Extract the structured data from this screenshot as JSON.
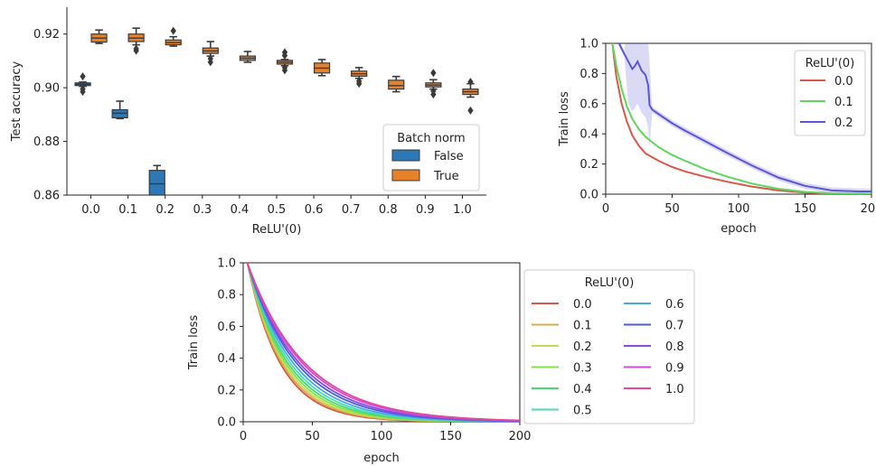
{
  "chart_data": [
    {
      "type": "box",
      "xlabel": "ReLU'(0)",
      "ylabel": "Test accuracy",
      "ylim": [
        0.86,
        0.93
      ],
      "yticks": [
        "0.86",
        "0.88",
        "0.90",
        "0.92"
      ],
      "categories": [
        "0.0",
        "0.1",
        "0.2",
        "0.3",
        "0.4",
        "0.5",
        "0.6",
        "0.7",
        "0.8",
        "0.9",
        "1.0"
      ],
      "legend": {
        "title": "Batch norm",
        "placement": "lower-right",
        "entries": [
          "False",
          "True"
        ]
      },
      "colors": {
        "False": "#2e78b5",
        "True": "#e8822a",
        "median": "#3a3a3a"
      },
      "series": [
        {
          "name": "False",
          "boxes": [
            {
              "category": "0.0",
              "whislo": 0.9005,
              "q1": 0.9008,
              "med": 0.9013,
              "q3": 0.9018,
              "whishi": 0.9021,
              "outliers": [
                0.9042,
                0.8985,
                0.8995
              ]
            },
            {
              "category": "0.1",
              "whislo": 0.8885,
              "q1": 0.8888,
              "med": 0.8905,
              "q3": 0.8918,
              "whishi": 0.895,
              "outliers": []
            },
            {
              "category": "0.2",
              "whislo": 0.86,
              "q1": 0.86,
              "med": 0.8642,
              "q3": 0.8692,
              "whishi": 0.871,
              "outliers": []
            }
          ]
        },
        {
          "name": "True",
          "boxes": [
            {
              "category": "0.0",
              "whislo": 0.9165,
              "q1": 0.917,
              "med": 0.9185,
              "q3": 0.92,
              "whishi": 0.9215,
              "outliers": []
            },
            {
              "category": "0.1",
              "whislo": 0.916,
              "q1": 0.9172,
              "med": 0.9185,
              "q3": 0.92,
              "whishi": 0.9222,
              "outliers": [
                0.9138,
                0.9145
              ]
            },
            {
              "category": "0.2",
              "whislo": 0.9155,
              "q1": 0.916,
              "med": 0.9168,
              "q3": 0.9178,
              "whishi": 0.919,
              "outliers": [
                0.9212
              ]
            },
            {
              "category": "0.3",
              "whislo": 0.9118,
              "q1": 0.9128,
              "med": 0.9137,
              "q3": 0.9148,
              "whishi": 0.9172,
              "outliers": [
                0.9095,
                0.9108
              ]
            },
            {
              "category": "0.4",
              "whislo": 0.9095,
              "q1": 0.9102,
              "med": 0.911,
              "q3": 0.9118,
              "whishi": 0.9135,
              "outliers": []
            },
            {
              "category": "0.5",
              "whislo": 0.9082,
              "q1": 0.9088,
              "med": 0.9095,
              "q3": 0.9102,
              "whishi": 0.9105,
              "outliers": [
                0.9132,
                0.912,
                0.9065,
                0.9075
              ]
            },
            {
              "category": "0.6",
              "whislo": 0.9045,
              "q1": 0.9055,
              "med": 0.9073,
              "q3": 0.9092,
              "whishi": 0.9105,
              "outliers": []
            },
            {
              "category": "0.7",
              "whislo": 0.9035,
              "q1": 0.9043,
              "med": 0.9052,
              "q3": 0.9062,
              "whishi": 0.9075,
              "outliers": [
                0.9015,
                0.9025
              ]
            },
            {
              "category": "0.8",
              "whislo": 0.8985,
              "q1": 0.8995,
              "med": 0.9008,
              "q3": 0.9028,
              "whishi": 0.9042,
              "outliers": []
            },
            {
              "category": "0.9",
              "whislo": 0.8995,
              "q1": 0.9003,
              "med": 0.901,
              "q3": 0.9018,
              "whishi": 0.903,
              "outliers": [
                0.9055,
                0.8975,
                0.8988
              ]
            },
            {
              "category": "1.0",
              "whislo": 0.8965,
              "q1": 0.8975,
              "med": 0.8985,
              "q3": 0.8995,
              "whishi": 0.9015,
              "outliers": [
                0.9022,
                0.8915
              ]
            }
          ]
        }
      ]
    },
    {
      "type": "line",
      "xlabel": "epoch",
      "ylabel": "Train loss",
      "xlim": [
        0,
        200
      ],
      "ylim": [
        0,
        1
      ],
      "xticks": [
        "0",
        "50",
        "100",
        "150",
        "200"
      ],
      "yticks": [
        "0.0",
        "0.2",
        "0.4",
        "0.6",
        "0.8",
        "1.0"
      ],
      "legend": {
        "title": "ReLU'(0)",
        "placement": "top-right"
      },
      "band_note": "shaded variability band shown around 0.2 curve",
      "series": [
        {
          "name": "0.0",
          "color": "#d9584a",
          "x": [
            5,
            8,
            12,
            16,
            20,
            25,
            30,
            40,
            50,
            60,
            75,
            90,
            110,
            130,
            150,
            170,
            190,
            200
          ],
          "y": [
            1.0,
            0.78,
            0.6,
            0.48,
            0.39,
            0.32,
            0.27,
            0.22,
            0.18,
            0.15,
            0.115,
            0.085,
            0.05,
            0.025,
            0.01,
            0.004,
            0.002,
            0.001
          ]
        },
        {
          "name": "0.1",
          "color": "#5cd65c",
          "x": [
            5,
            8,
            12,
            16,
            20,
            25,
            30,
            40,
            50,
            60,
            75,
            90,
            110,
            130,
            150,
            170,
            190,
            200
          ],
          "y": [
            1.0,
            0.85,
            0.7,
            0.58,
            0.5,
            0.43,
            0.38,
            0.31,
            0.26,
            0.22,
            0.165,
            0.12,
            0.07,
            0.035,
            0.015,
            0.005,
            0.002,
            0.001
          ]
        },
        {
          "name": "0.2",
          "color": "#5c55d6",
          "x": [
            10,
            14,
            17,
            20,
            22,
            24,
            27,
            30,
            32,
            33,
            35,
            40,
            50,
            60,
            75,
            90,
            110,
            130,
            150,
            170,
            190,
            200
          ],
          "y": [
            1.0,
            0.93,
            0.88,
            0.83,
            0.85,
            0.88,
            0.82,
            0.79,
            0.72,
            0.59,
            0.56,
            0.53,
            0.47,
            0.42,
            0.35,
            0.28,
            0.19,
            0.11,
            0.055,
            0.025,
            0.018,
            0.018
          ]
        }
      ]
    },
    {
      "type": "line",
      "xlabel": "epoch",
      "ylabel": "Train loss",
      "xlim": [
        0,
        200
      ],
      "ylim": [
        0,
        1
      ],
      "xticks": [
        "0",
        "50",
        "100",
        "150",
        "200"
      ],
      "yticks": [
        "0.0",
        "0.2",
        "0.4",
        "0.6",
        "0.8",
        "1.0"
      ],
      "legend": {
        "title": "ReLU'(0)",
        "placement": "outside-right",
        "columns": 2
      },
      "curve_model": "y = exp(-k*(x-3)), k per series",
      "series": [
        {
          "name": "0.0",
          "color": "#d9584a",
          "k": 0.042
        },
        {
          "name": "0.1",
          "color": "#d9a94a",
          "k": 0.04
        },
        {
          "name": "0.2",
          "color": "#c6db4e",
          "k": 0.038
        },
        {
          "name": "0.3",
          "color": "#86e04a",
          "k": 0.036
        },
        {
          "name": "0.4",
          "color": "#4ad870",
          "k": 0.034
        },
        {
          "name": "0.5",
          "color": "#4adbbe",
          "k": 0.032
        },
        {
          "name": "0.6",
          "color": "#4aa8e0",
          "k": 0.03
        },
        {
          "name": "0.7",
          "color": "#4a5ce0",
          "k": 0.028
        },
        {
          "name": "0.8",
          "color": "#8a4ae0",
          "k": 0.0265
        },
        {
          "name": "0.9",
          "color": "#d24ae0",
          "k": 0.025
        },
        {
          "name": "1.0",
          "color": "#e04a98",
          "k": 0.024
        }
      ]
    }
  ]
}
